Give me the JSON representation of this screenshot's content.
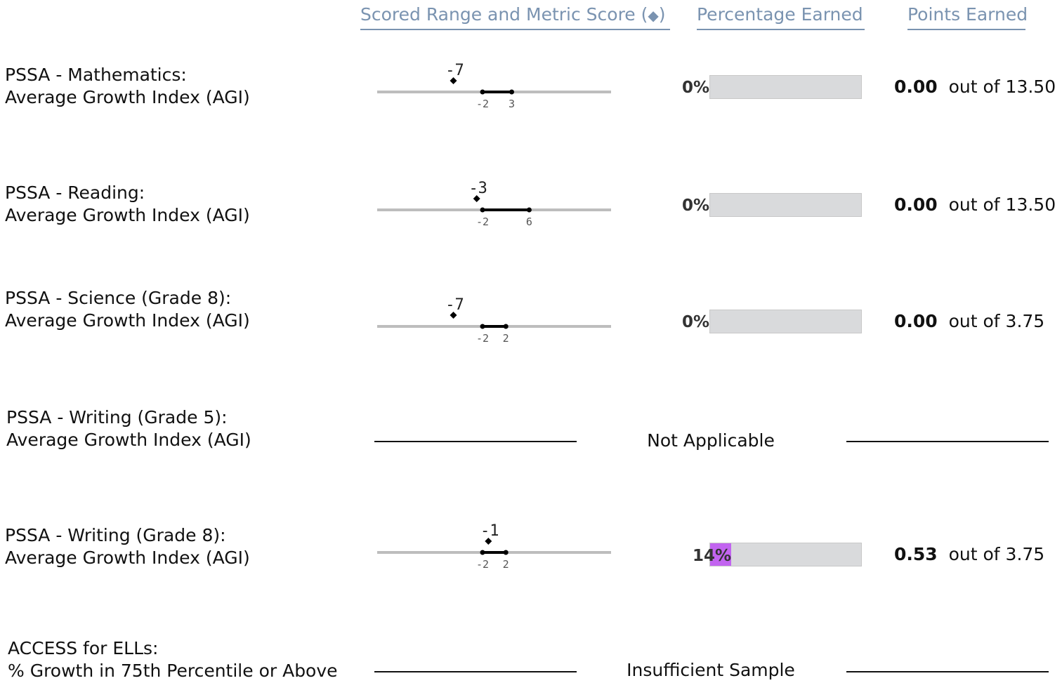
{
  "headers": {
    "scored_range": "Scored Range and Metric Score",
    "diamond": "◆",
    "percentage": "Percentage Earned",
    "points": "Points Earned"
  },
  "rows": [
    {
      "line1": "PSSA - Mathematics:",
      "line2": "Average Growth Index (AGI)",
      "score": "-7",
      "score_value": -7,
      "low": "-2",
      "high": "3",
      "low_value": -2,
      "high_value": 3,
      "percent": "0%",
      "percent_value": 0,
      "points": "0.00",
      "out_of": "out of",
      "max": "13.50"
    },
    {
      "line1": "PSSA - Reading:",
      "line2": "Average Growth Index (AGI)",
      "score": "-3",
      "score_value": -3,
      "low": "-2",
      "high": "6",
      "low_value": -2,
      "high_value": 6,
      "percent": "0%",
      "percent_value": 0,
      "points": "0.00",
      "out_of": "out of",
      "max": "13.50"
    },
    {
      "line1": "PSSA - Science (Grade 8):",
      "line2": "Average Growth Index (AGI)",
      "score": "-7",
      "score_value": -7,
      "low": "-2",
      "high": "2",
      "low_value": -2,
      "high_value": 2,
      "percent": "0%",
      "percent_value": 0,
      "points": "0.00",
      "out_of": "out of",
      "max": "3.75"
    },
    {
      "line1": "PSSA - Writing (Grade 5):",
      "line2": "Average Growth Index (AGI)",
      "status": "Not Applicable"
    },
    {
      "line1": "PSSA - Writing (Grade 8):",
      "line2": "Average Growth Index (AGI)",
      "score": "-1",
      "score_value": -1,
      "low": "-2",
      "high": "2",
      "low_value": -2,
      "high_value": 2,
      "percent": "14%",
      "percent_value": 14,
      "points": "0.53",
      "out_of": "out of",
      "max": "3.75"
    },
    {
      "line1": "ACCESS for ELLs:",
      "line2": "% Growth in 75th Percentile or Above",
      "status": "Insufficient Sample"
    }
  ],
  "colors": {
    "header": "#7a93b0",
    "fill": "#c264f0",
    "bar_bg": "#d9dadc",
    "axis": "#bdbdbd"
  }
}
